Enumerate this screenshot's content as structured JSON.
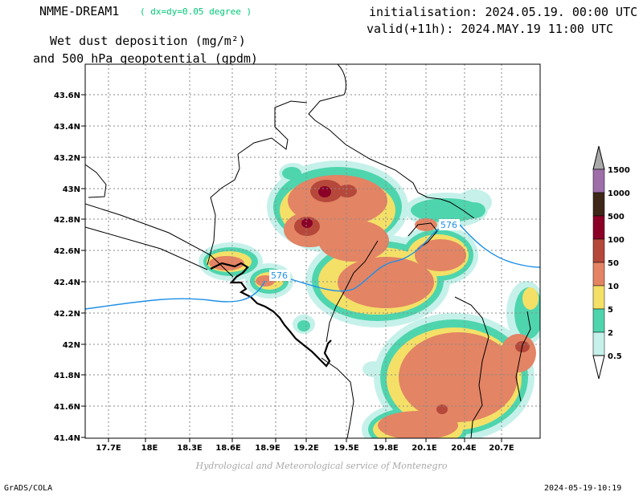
{
  "header": {
    "model": "NMME-DREAM1",
    "resolution": "( dx=dy=0.05 degree )",
    "variable_line1": "Wet dust deposition (mg/m²)",
    "variable_line2": "and 500 hPa geopotential (gpdm)",
    "initialisation": "initialisation: 2024.05.19. 00:00 UTC",
    "valid": "valid(+11h): 2024.MAY.19 11:00 UTC"
  },
  "axes": {
    "y_ticks": [
      "43.6N",
      "43.4N",
      "43.2N",
      "43N",
      "42.8N",
      "42.6N",
      "42.4N",
      "42.2N",
      "42N",
      "41.8N",
      "41.6N",
      "41.4N"
    ],
    "x_ticks": [
      "17.7E",
      "18E",
      "18.3E",
      "18.6E",
      "18.9E",
      "19.2E",
      "19.5E",
      "19.8E",
      "20.1E",
      "20.4E",
      "20.7E"
    ],
    "lat_range": [
      41.4,
      43.8
    ],
    "lon_range": [
      17.5,
      20.95
    ]
  },
  "legend": {
    "labels": [
      "1500",
      "1000",
      "500",
      "100",
      "50",
      "10",
      "5",
      "2",
      "0.5"
    ],
    "colors": [
      "#9e6ea9",
      "#3e2718",
      "#8b0026",
      "#b5483a",
      "#e38464",
      "#f4e067",
      "#4ed5ad",
      "#c5f1ea"
    ]
  },
  "contour": {
    "label_1": "576",
    "label_2": "576",
    "color": "#1e90e6"
  },
  "colors": {
    "very_light": "#c5f1ea",
    "light": "#4ed5ad",
    "yellow": "#f4e067",
    "salmon": "#e38464",
    "brown": "#b5483a",
    "dark_red": "#8b0026"
  },
  "credit": "Hydrological and Meteorological service of Montenegro",
  "footer": {
    "left": "GrADS/COLA",
    "right": "2024-05-19-10:19"
  }
}
